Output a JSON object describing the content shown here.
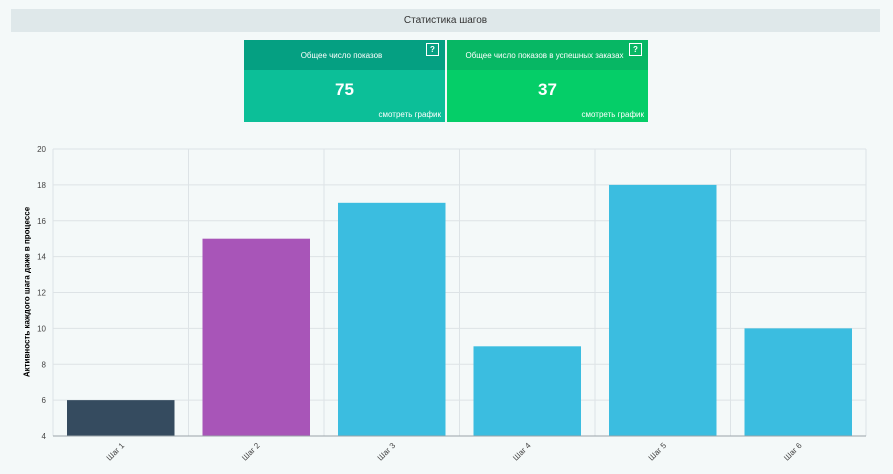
{
  "header": {
    "title": "Статистика шагов"
  },
  "cards": [
    {
      "title": "Общее число показов",
      "value": "75",
      "link": "смотреть график",
      "help": "?"
    },
    {
      "title": "Общее число показов в успешных заказах",
      "value": "37",
      "link": "смотреть график",
      "help": "?"
    }
  ],
  "colors": {
    "bar_default": "#3bbde0",
    "bar_1": "#354b5f",
    "bar_2": "#a855b8"
  },
  "chart_data": {
    "type": "bar",
    "categories": [
      "Шаг 1",
      "Шаг 2",
      "Шаг 3",
      "Шаг 4",
      "Шаг 5",
      "Шаг 6"
    ],
    "values": [
      6,
      15,
      17,
      9,
      18,
      10
    ],
    "bar_colors": [
      "#354b5f",
      "#a855b8",
      "#3bbde0",
      "#3bbde0",
      "#3bbde0",
      "#3bbde0"
    ],
    "ylabel": "Активность каждого шага даже в процессе",
    "xlabel": "",
    "ylim": [
      4,
      20
    ],
    "yticks": [
      4,
      6,
      8,
      10,
      12,
      14,
      16,
      18,
      20
    ],
    "grid": true
  }
}
